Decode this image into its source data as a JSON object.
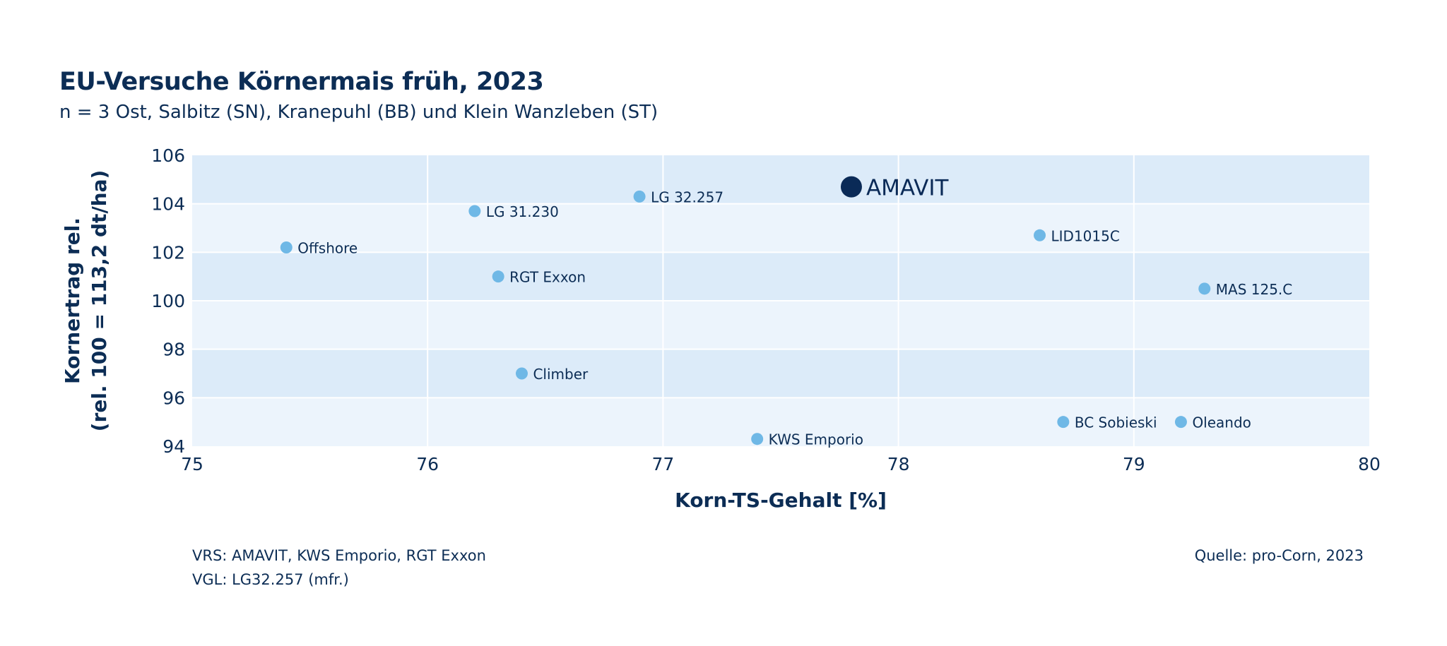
{
  "header": {
    "title": "EU-Versuche Körnermais früh, 2023",
    "subtitle": "n = 3 Ost, Salbitz (SN), Kranepuhl (BB) und Klein Wanzleben (ST)"
  },
  "footer": {
    "line1": "VRS: AMAVIT, KWS Emporio, RGT Exxon",
    "line2": "VGL: LG32.257 (mfr.)",
    "source": "Quelle: pro-Corn, 2023"
  },
  "colors": {
    "point": "#6fb8e6",
    "highlight": "#0a2a57",
    "band_dark": "#dcebf9",
    "band_light": "#ecf4fc",
    "grid": "#ffffff",
    "text": "#0c2d55"
  },
  "chart_data": {
    "type": "scatter",
    "xlabel": "Korn-TS-Gehalt [%]",
    "ylabel": [
      "Kornertrag rel.",
      "(rel. 100 = 113,2 dt/ha)"
    ],
    "xlim": [
      75,
      80
    ],
    "ylim": [
      94,
      106
    ],
    "xticks": [
      75,
      76,
      77,
      78,
      79,
      80
    ],
    "yticks": [
      94,
      96,
      98,
      100,
      102,
      104,
      106
    ],
    "grid": true,
    "points": [
      {
        "label": "AMAVIT",
        "x": 77.8,
        "y": 104.7,
        "highlight": true
      },
      {
        "label": "LG 32.257",
        "x": 76.9,
        "y": 104.3
      },
      {
        "label": "LG 31.230",
        "x": 76.2,
        "y": 103.7
      },
      {
        "label": "Offshore",
        "x": 75.4,
        "y": 102.2
      },
      {
        "label": "RGT Exxon",
        "x": 76.3,
        "y": 101.0
      },
      {
        "label": "LID1015C",
        "x": 78.6,
        "y": 102.7
      },
      {
        "label": "MAS 125.C",
        "x": 79.3,
        "y": 100.5
      },
      {
        "label": "Climber",
        "x": 76.4,
        "y": 97.0
      },
      {
        "label": "BC Sobieski",
        "x": 78.7,
        "y": 95.0
      },
      {
        "label": "Oleando",
        "x": 79.2,
        "y": 95.0
      },
      {
        "label": "KWS Emporio",
        "x": 77.4,
        "y": 94.3
      }
    ]
  }
}
